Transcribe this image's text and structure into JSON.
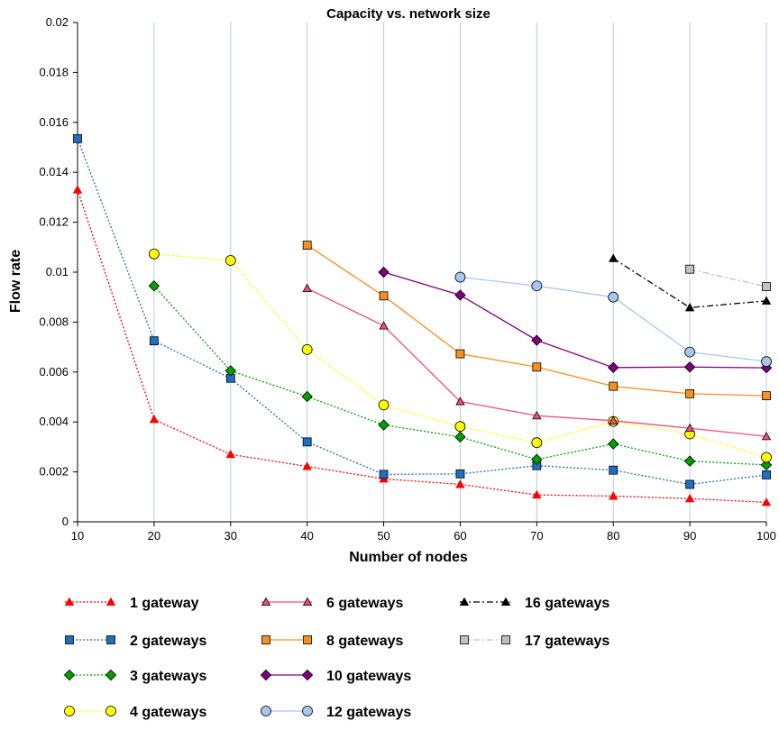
{
  "chart_data": {
    "type": "line",
    "title": "Capacity vs. network size",
    "xlabel": "Number of nodes",
    "ylabel": "Flow rate",
    "x": [
      10,
      20,
      30,
      40,
      50,
      60,
      70,
      80,
      90,
      100
    ],
    "xlim": [
      10,
      100
    ],
    "ylim": [
      0,
      0.02
    ],
    "x_ticks": [
      "10",
      "20",
      "30",
      "40",
      "50",
      "60",
      "70",
      "80",
      "90",
      "100"
    ],
    "y_ticks": [
      "0",
      "0.002",
      "0.004",
      "0.006",
      "0.008",
      "0.01",
      "0.012",
      "0.014",
      "0.016",
      "0.018",
      "0.02"
    ],
    "grid": "vertical",
    "legend_position": "bottom",
    "series": [
      {
        "name": "1 gateway",
        "color": "#ff0000",
        "marker": "triangle",
        "line": "dotted",
        "points": [
          [
            10,
            0.0133
          ],
          [
            20,
            0.0041
          ],
          [
            30,
            0.0027
          ],
          [
            40,
            0.00222
          ],
          [
            50,
            0.00172
          ],
          [
            60,
            0.0015
          ],
          [
            70,
            0.00108
          ],
          [
            80,
            0.00103
          ],
          [
            90,
            0.00093
          ],
          [
            100,
            0.00078
          ]
        ]
      },
      {
        "name": "2 gateways",
        "color": "#1f6fbf",
        "marker": "square",
        "line": "dotted",
        "points": [
          [
            10,
            0.01535
          ],
          [
            20,
            0.00725
          ],
          [
            30,
            0.00575
          ],
          [
            40,
            0.0032
          ],
          [
            50,
            0.0019
          ],
          [
            60,
            0.00192
          ],
          [
            70,
            0.00225
          ],
          [
            80,
            0.00207
          ],
          [
            90,
            0.0015
          ],
          [
            100,
            0.00188
          ]
        ]
      },
      {
        "name": "3 gateways",
        "color": "#00a000",
        "marker": "diamond",
        "line": "dotted",
        "points": [
          [
            20,
            0.00945
          ],
          [
            30,
            0.00605
          ],
          [
            40,
            0.00502
          ],
          [
            50,
            0.00388
          ],
          [
            60,
            0.0034
          ],
          [
            70,
            0.0025
          ],
          [
            80,
            0.00312
          ],
          [
            90,
            0.00243
          ],
          [
            100,
            0.00228
          ]
        ]
      },
      {
        "name": "4 gateways",
        "color": "#ffff00",
        "marker": "circle",
        "line": "dotted",
        "points": [
          [
            20,
            0.01073
          ],
          [
            30,
            0.01047
          ],
          [
            40,
            0.0069
          ],
          [
            50,
            0.00468
          ],
          [
            60,
            0.00382
          ],
          [
            70,
            0.00317
          ],
          [
            80,
            0.00402
          ],
          [
            90,
            0.00352
          ],
          [
            100,
            0.00258
          ]
        ]
      },
      {
        "name": "6 gateways",
        "color": "#ee4e7e",
        "marker": "triangle",
        "line": "solid",
        "points": [
          [
            40,
            0.00935
          ],
          [
            50,
            0.00785
          ],
          [
            60,
            0.00482
          ],
          [
            70,
            0.00425
          ],
          [
            80,
            0.00405
          ],
          [
            90,
            0.00375
          ],
          [
            100,
            0.00342
          ]
        ]
      },
      {
        "name": "8 gateways",
        "color": "#f7901e",
        "marker": "square",
        "line": "solid",
        "points": [
          [
            40,
            0.01108
          ],
          [
            50,
            0.00905
          ],
          [
            60,
            0.00673
          ],
          [
            70,
            0.0062
          ],
          [
            80,
            0.00543
          ],
          [
            90,
            0.00513
          ],
          [
            100,
            0.00505
          ]
        ]
      },
      {
        "name": "10 gateways",
        "color": "#800080",
        "marker": "diamond",
        "line": "solid",
        "points": [
          [
            50,
            0.01
          ],
          [
            60,
            0.00908
          ],
          [
            70,
            0.00727
          ],
          [
            80,
            0.00618
          ],
          [
            90,
            0.0062
          ],
          [
            100,
            0.00617
          ]
        ]
      },
      {
        "name": "12 gateways",
        "color": "#a8c6ee",
        "marker": "circle",
        "line": "solid",
        "points": [
          [
            60,
            0.0098
          ],
          [
            70,
            0.00945
          ],
          [
            80,
            0.009
          ],
          [
            90,
            0.0068
          ],
          [
            100,
            0.00642
          ]
        ]
      },
      {
        "name": "16 gateways",
        "color": "#000000",
        "marker": "triangle",
        "line": "dashdot",
        "points": [
          [
            80,
            0.01055
          ],
          [
            90,
            0.00858
          ],
          [
            100,
            0.00885
          ]
        ]
      },
      {
        "name": "17 gateways",
        "color": "#c0c0c0",
        "marker": "square",
        "line": "dashdot",
        "points": [
          [
            90,
            0.01012
          ],
          [
            100,
            0.00942
          ]
        ]
      }
    ]
  }
}
